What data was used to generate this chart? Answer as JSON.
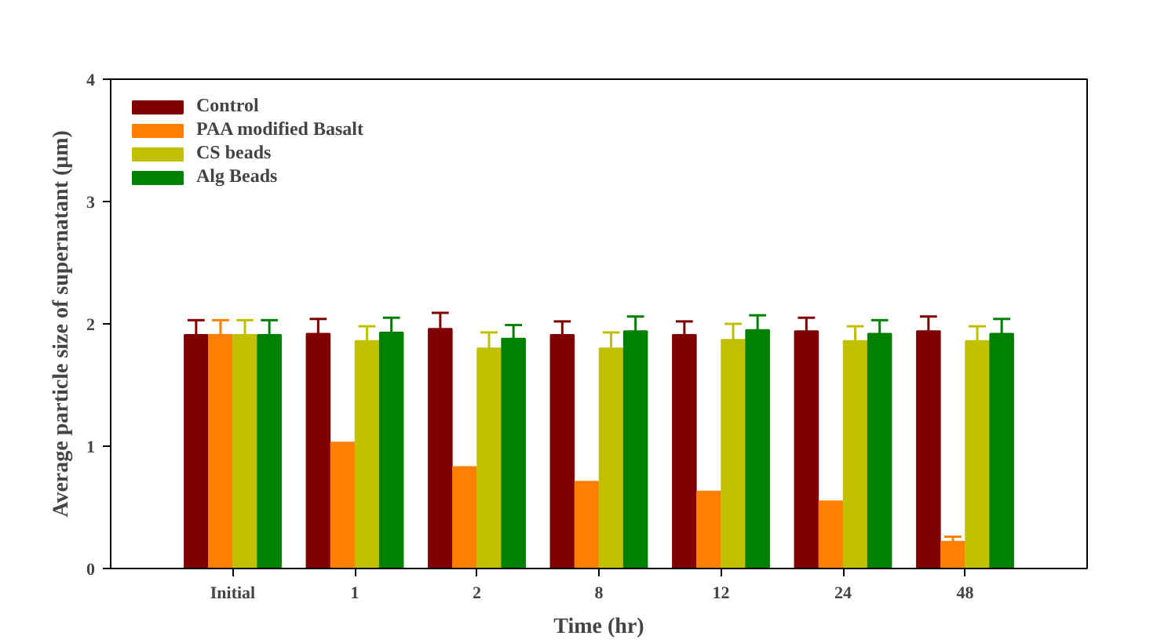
{
  "chart_data": {
    "type": "bar",
    "xlabel": "Time (hr)",
    "ylabel": "Average particle size of supernatant (μm)",
    "categories": [
      "Initial",
      "1",
      "2",
      "8",
      "12",
      "24",
      "48"
    ],
    "ylim": [
      0,
      4
    ],
    "yticks": [
      0,
      1,
      2,
      3,
      4
    ],
    "grid": false,
    "legend": "top left",
    "series": [
      {
        "name": "Control",
        "color": "#800000",
        "values": [
          1.91,
          1.92,
          1.96,
          1.91,
          1.91,
          1.94,
          1.94
        ],
        "errors": [
          0.12,
          0.12,
          0.13,
          0.11,
          0.11,
          0.11,
          0.12
        ]
      },
      {
        "name": "PAA modified Basalt",
        "color": "#ff8000",
        "values": [
          1.91,
          1.03,
          0.83,
          0.71,
          0.63,
          0.55,
          0.22
        ],
        "errors": [
          0.12,
          null,
          null,
          null,
          null,
          null,
          0.04
        ]
      },
      {
        "name": "CS beads",
        "color": "#c0c000",
        "values": [
          1.91,
          1.86,
          1.8,
          1.8,
          1.87,
          1.86,
          1.86
        ],
        "errors": [
          0.12,
          0.12,
          0.13,
          0.13,
          0.13,
          0.12,
          0.12
        ]
      },
      {
        "name": "Alg Beads",
        "color": "#008000",
        "values": [
          1.91,
          1.93,
          1.88,
          1.94,
          1.95,
          1.92,
          1.92
        ],
        "errors": [
          0.12,
          0.12,
          0.11,
          0.12,
          0.12,
          0.11,
          0.12
        ]
      }
    ]
  }
}
